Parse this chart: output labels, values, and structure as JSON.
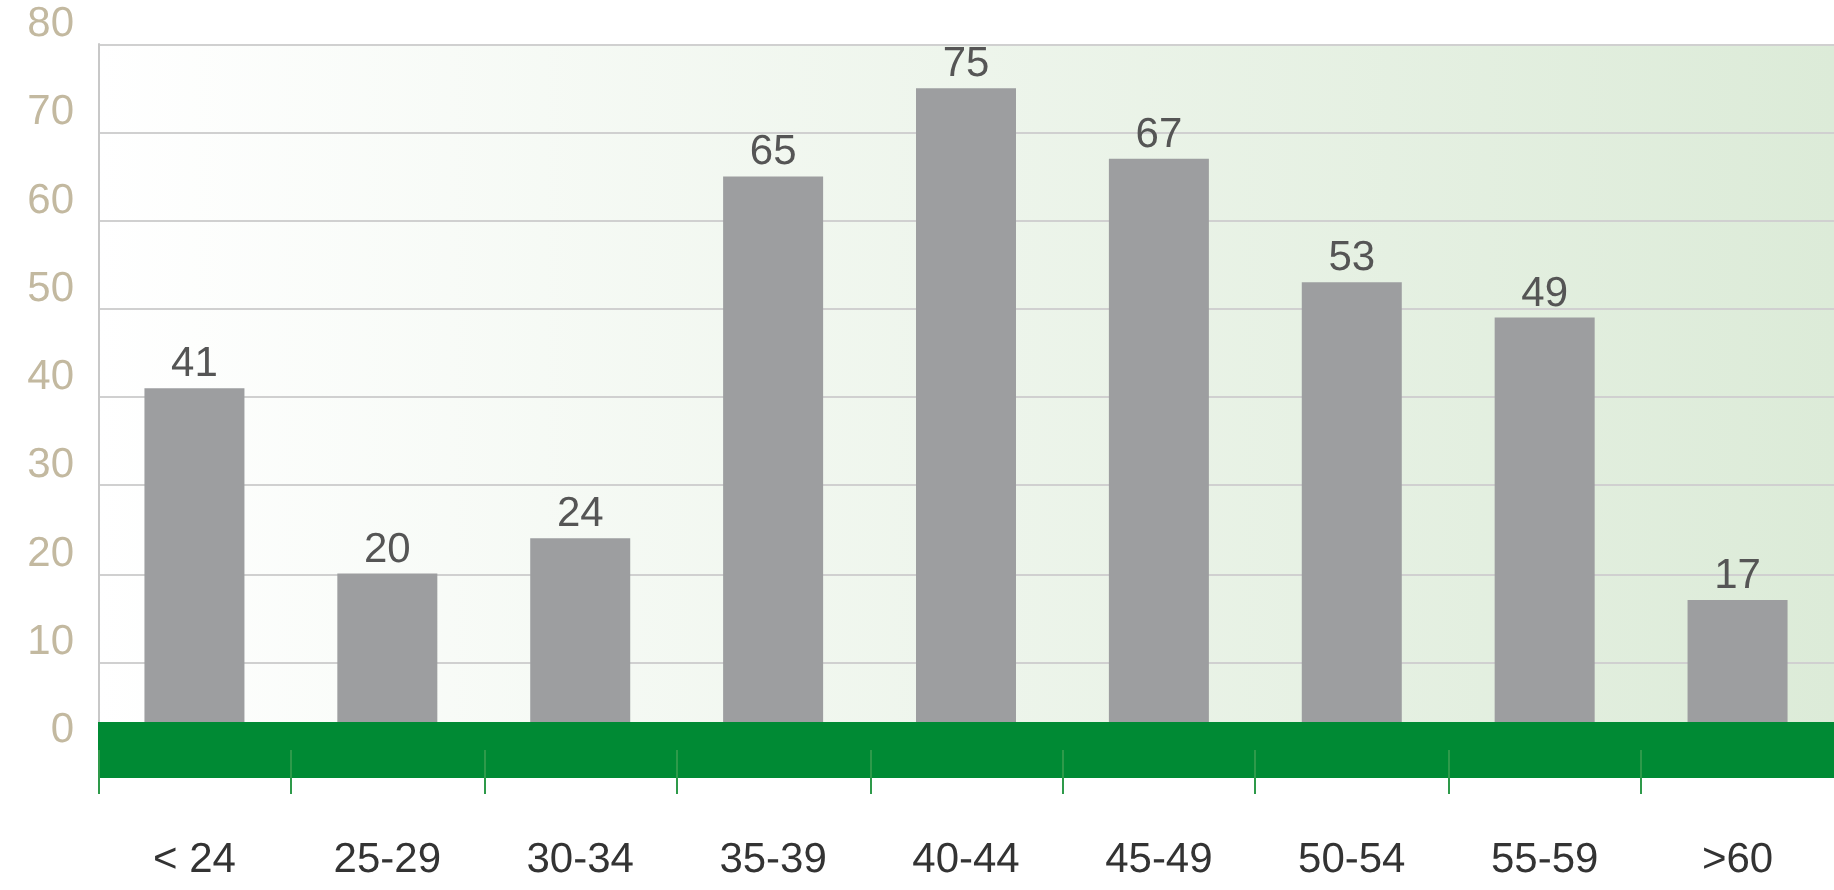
{
  "chart_data": {
    "type": "bar",
    "categories": [
      "< 24",
      "25-29",
      "30-34",
      "35-39",
      "40-44",
      "45-49",
      "50-54",
      "55-59",
      ">60"
    ],
    "values": [
      41,
      20,
      24,
      65,
      75,
      67,
      53,
      49,
      17
    ],
    "color": "#9d9ea0",
    "ylim": [
      0,
      80
    ],
    "yticks": [
      0,
      10,
      20,
      30,
      40,
      50,
      60,
      70,
      80
    ],
    "grid": "y",
    "data_labels": true
  }
}
